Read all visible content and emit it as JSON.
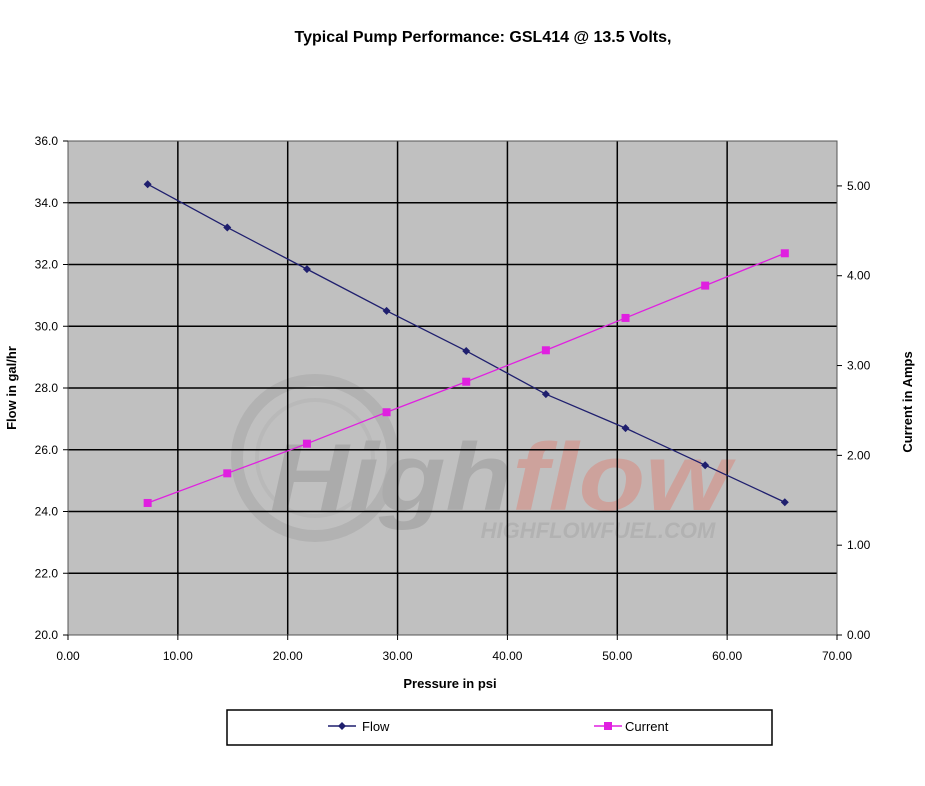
{
  "chart_data": {
    "type": "scatter",
    "title": "Typical Pump Performance:  GSL414 @ 13.5 Volts,",
    "xlabel": "Pressure in psi",
    "ylabel": "Flow in gal/hr",
    "y2label": "Current in Amps",
    "xlim": [
      0,
      70
    ],
    "ylim": [
      20,
      36
    ],
    "y2lim": [
      0,
      5.5
    ],
    "x_ticks": [
      "0.00",
      "10.00",
      "20.00",
      "30.00",
      "40.00",
      "50.00",
      "60.00",
      "70.00"
    ],
    "y_ticks": [
      "20.0",
      "22.0",
      "24.0",
      "26.0",
      "28.0",
      "30.0",
      "32.0",
      "34.0",
      "36.0"
    ],
    "y2_ticks": [
      "0.00",
      "1.00",
      "2.00",
      "3.00",
      "4.00",
      "5.00"
    ],
    "grid": true,
    "legend_position": "bottom",
    "series": [
      {
        "name": "Flow",
        "axis": "left",
        "color": "#1f1f6e",
        "marker": "diamond",
        "x": [
          7.25,
          14.5,
          21.75,
          29.0,
          36.25,
          43.5,
          50.75,
          58.0,
          65.25
        ],
        "y": [
          34.6,
          33.2,
          31.85,
          30.5,
          29.2,
          27.8,
          26.7,
          25.5,
          24.3
        ]
      },
      {
        "name": "Current",
        "axis": "right",
        "color": "#e020e0",
        "marker": "square",
        "x": [
          7.25,
          14.5,
          21.75,
          29.0,
          36.25,
          43.5,
          50.75,
          58.0,
          65.25
        ],
        "y": [
          1.47,
          1.8,
          2.13,
          2.48,
          2.82,
          3.17,
          3.53,
          3.89,
          4.25
        ]
      }
    ]
  },
  "watermark": {
    "brand": "Highflow",
    "url": "HIGHFLOWFUEL.COM",
    "brand_color_left": "#9a9a9a",
    "brand_color_right": "#d98b80"
  },
  "colors": {
    "plot_bg": "#c0c0c0",
    "grid": "#000000"
  }
}
